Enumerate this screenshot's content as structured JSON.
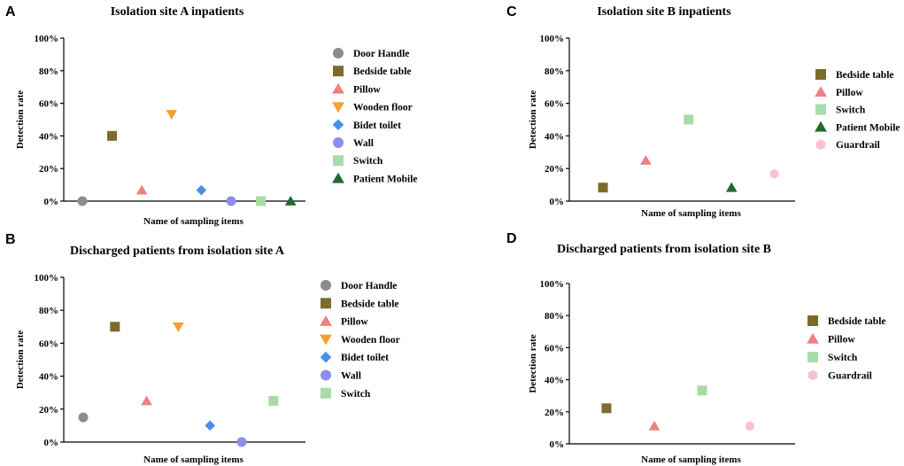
{
  "chart_data": [
    {
      "type": "scatter",
      "panel_letter": "A",
      "title": "Isolation site A inpatients",
      "xlabel": "Name of sampling items",
      "ylabel": "Detection rate",
      "ylim": [
        0,
        100
      ],
      "yticks": [
        "0%",
        "20%",
        "40%",
        "60%",
        "80%",
        "100%"
      ],
      "series": [
        {
          "name": "Door Handle",
          "value": 0,
          "color": "#8c8c8c",
          "marker": "circle"
        },
        {
          "name": "Bedside table",
          "value": 40,
          "color": "#7d6b2a",
          "marker": "square"
        },
        {
          "name": "Pillow",
          "value": 6.7,
          "color": "#f08080",
          "marker": "triangle-up"
        },
        {
          "name": "Wooden floor",
          "value": 53.3,
          "color": "#f5a030",
          "marker": "triangle-down"
        },
        {
          "name": "Bidet toilet",
          "value": 6.7,
          "color": "#4a90e2",
          "marker": "diamond"
        },
        {
          "name": "Wall",
          "value": 0,
          "color": "#8e8cf0",
          "marker": "circle"
        },
        {
          "name": "Switch",
          "value": 0,
          "color": "#a8dba8",
          "marker": "square"
        },
        {
          "name": "Patient Mobile",
          "value": 0,
          "color": "#1e6b2e",
          "marker": "triangle-up"
        }
      ]
    },
    {
      "type": "scatter",
      "panel_letter": "B",
      "title": "Discharged patients from isolation site A",
      "xlabel": "Name of sampling items",
      "ylabel": "Detection rate",
      "ylim": [
        0,
        100
      ],
      "yticks": [
        "0%",
        "20%",
        "40%",
        "60%",
        "80%",
        "100%"
      ],
      "series": [
        {
          "name": "Door Handle",
          "value": 15,
          "color": "#8c8c8c",
          "marker": "circle"
        },
        {
          "name": "Bedside table",
          "value": 70,
          "color": "#7d6b2a",
          "marker": "square"
        },
        {
          "name": "Pillow",
          "value": 25,
          "color": "#f08080",
          "marker": "triangle-up"
        },
        {
          "name": "Wooden floor",
          "value": 70,
          "color": "#f5a030",
          "marker": "triangle-down"
        },
        {
          "name": "Bidet toilet",
          "value": 10,
          "color": "#4a90e2",
          "marker": "diamond"
        },
        {
          "name": "Wall",
          "value": 0,
          "color": "#8e8cf0",
          "marker": "circle"
        },
        {
          "name": "Switch",
          "value": 25,
          "color": "#a8dba8",
          "marker": "square"
        }
      ]
    },
    {
      "type": "scatter",
      "panel_letter": "C",
      "title": "Isolation site B inpatients",
      "xlabel": "Name of sampling items",
      "ylabel": "Detection rate",
      "ylim": [
        0,
        100
      ],
      "yticks": [
        "0%",
        "20%",
        "40%",
        "60%",
        "80%",
        "100%"
      ],
      "series": [
        {
          "name": "Bedside table",
          "value": 8.3,
          "color": "#7d6b2a",
          "marker": "square"
        },
        {
          "name": "Pillow",
          "value": 25,
          "color": "#f08080",
          "marker": "triangle-up"
        },
        {
          "name": "Switch",
          "value": 50,
          "color": "#a8dba8",
          "marker": "square"
        },
        {
          "name": "Patient Mobile",
          "value": 8.3,
          "color": "#1e6b2e",
          "marker": "triangle-up"
        },
        {
          "name": "Guardrail",
          "value": 16.7,
          "color": "#f9c0d8",
          "marker": "hexagon"
        }
      ]
    },
    {
      "type": "scatter",
      "panel_letter": "D",
      "title": "Discharged patients from isolation site B",
      "xlabel": "Name of sampling items",
      "ylabel": "Detection rate",
      "ylim": [
        0,
        100
      ],
      "yticks": [
        "0%",
        "20%",
        "40%",
        "60%",
        "80%",
        "100%"
      ],
      "series": [
        {
          "name": "Bedside table",
          "value": 22.2,
          "color": "#7d6b2a",
          "marker": "square"
        },
        {
          "name": "Pillow",
          "value": 11.1,
          "color": "#f08080",
          "marker": "triangle-up"
        },
        {
          "name": "Switch",
          "value": 33.3,
          "color": "#a8dba8",
          "marker": "square"
        },
        {
          "name": "Guardrail",
          "value": 11.1,
          "color": "#f9c0d8",
          "marker": "hexagon"
        }
      ]
    }
  ]
}
